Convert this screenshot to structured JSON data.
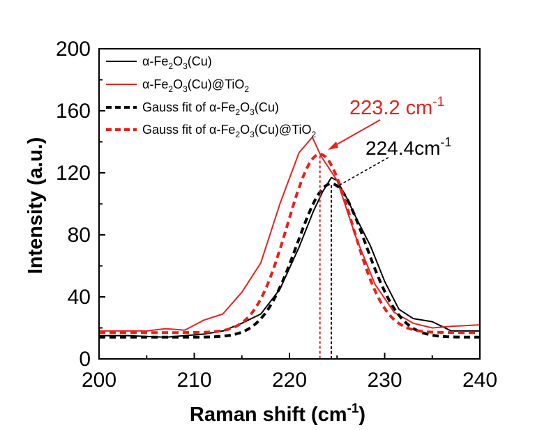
{
  "chart_data": {
    "type": "line",
    "title": "",
    "xlabel": "Raman shift (cm",
    "xlabel_sup": "-1",
    "xlabel_end": ")",
    "ylabel": "Intensity (a.u.)",
    "xlim": [
      200,
      240
    ],
    "ylim": [
      0,
      200
    ],
    "xticks": [
      200,
      210,
      220,
      230,
      240
    ],
    "yticks": [
      0,
      40,
      80,
      120,
      160,
      200
    ],
    "grid": false,
    "legend_position": "top-left",
    "colors": {
      "black": "#000000",
      "red": "#e8211c"
    },
    "series": [
      {
        "name": "α-Fe2O3(Cu)",
        "legend": {
          "pre": "α-Fe",
          "s1": "2",
          "mid": "O",
          "s2": "3",
          "post": "(Cu)"
        },
        "color": "#000000",
        "style": "solid",
        "points": [
          [
            200,
            15
          ],
          [
            203,
            15
          ],
          [
            205,
            14.5
          ],
          [
            207,
            14
          ],
          [
            209,
            15
          ],
          [
            211,
            16
          ],
          [
            213,
            18
          ],
          [
            215,
            23
          ],
          [
            217,
            29
          ],
          [
            219,
            45
          ],
          [
            221,
            72
          ],
          [
            222.5,
            95
          ],
          [
            223.5,
            108
          ],
          [
            224.4,
            117
          ],
          [
            225,
            115
          ],
          [
            226,
            104
          ],
          [
            227,
            91
          ],
          [
            228.5,
            73
          ],
          [
            230,
            50
          ],
          [
            231.5,
            32
          ],
          [
            233,
            26
          ],
          [
            235,
            24
          ],
          [
            237,
            18
          ],
          [
            239,
            18
          ],
          [
            240,
            18
          ]
        ]
      },
      {
        "name": "α-Fe2O3(Cu)@TiO2",
        "legend": {
          "pre": "α-Fe",
          "s1": "2",
          "mid": "O",
          "s2": "3",
          "post": "(Cu)@TiO",
          "s3": "2"
        },
        "color": "#e8211c",
        "style": "solid",
        "points": [
          [
            200,
            18
          ],
          [
            203,
            18
          ],
          [
            205,
            18
          ],
          [
            207,
            19.5
          ],
          [
            209,
            18.5
          ],
          [
            211,
            25
          ],
          [
            213,
            29
          ],
          [
            215,
            43
          ],
          [
            217,
            62
          ],
          [
            219,
            100
          ],
          [
            221,
            133
          ],
          [
            222.4,
            143
          ],
          [
            223.3,
            131
          ],
          [
            225,
            115
          ],
          [
            227,
            78
          ],
          [
            229,
            48
          ],
          [
            231,
            30
          ],
          [
            233,
            23
          ],
          [
            235,
            20
          ],
          [
            237,
            21
          ],
          [
            240,
            22
          ]
        ]
      },
      {
        "name": "Gauss fit of α-Fe2O3(Cu)",
        "legend": {
          "pre": "Gauss fit of α-Fe",
          "s1": "2",
          "mid": "O",
          "s2": "3",
          "post": "(Cu)"
        },
        "color": "#000000",
        "style": "dashed",
        "gauss": {
          "baseline": 14,
          "amplitude": 99,
          "center": 224.4,
          "sigma": 3.6
        }
      },
      {
        "name": "Gauss fit of α-Fe2O3(Cu)@TiO2",
        "legend": {
          "pre": "Gauss fit of α-Fe",
          "s1": "2",
          "mid": "O",
          "s2": "3",
          "post": "(Cu)@TiO",
          "s3": "2"
        },
        "color": "#e8211c",
        "style": "dashed",
        "gauss": {
          "baseline": 17,
          "amplitude": 115,
          "center": 223.2,
          "sigma": 3.4
        }
      }
    ],
    "annotations": [
      {
        "text": "223.2 cm",
        "sup": "-1",
        "color": "#e8211c",
        "x": 223.2,
        "y": 131
      },
      {
        "text": "224.4cm",
        "sup": "-1",
        "color": "#000000",
        "x": 224.4,
        "y": 112
      }
    ]
  }
}
